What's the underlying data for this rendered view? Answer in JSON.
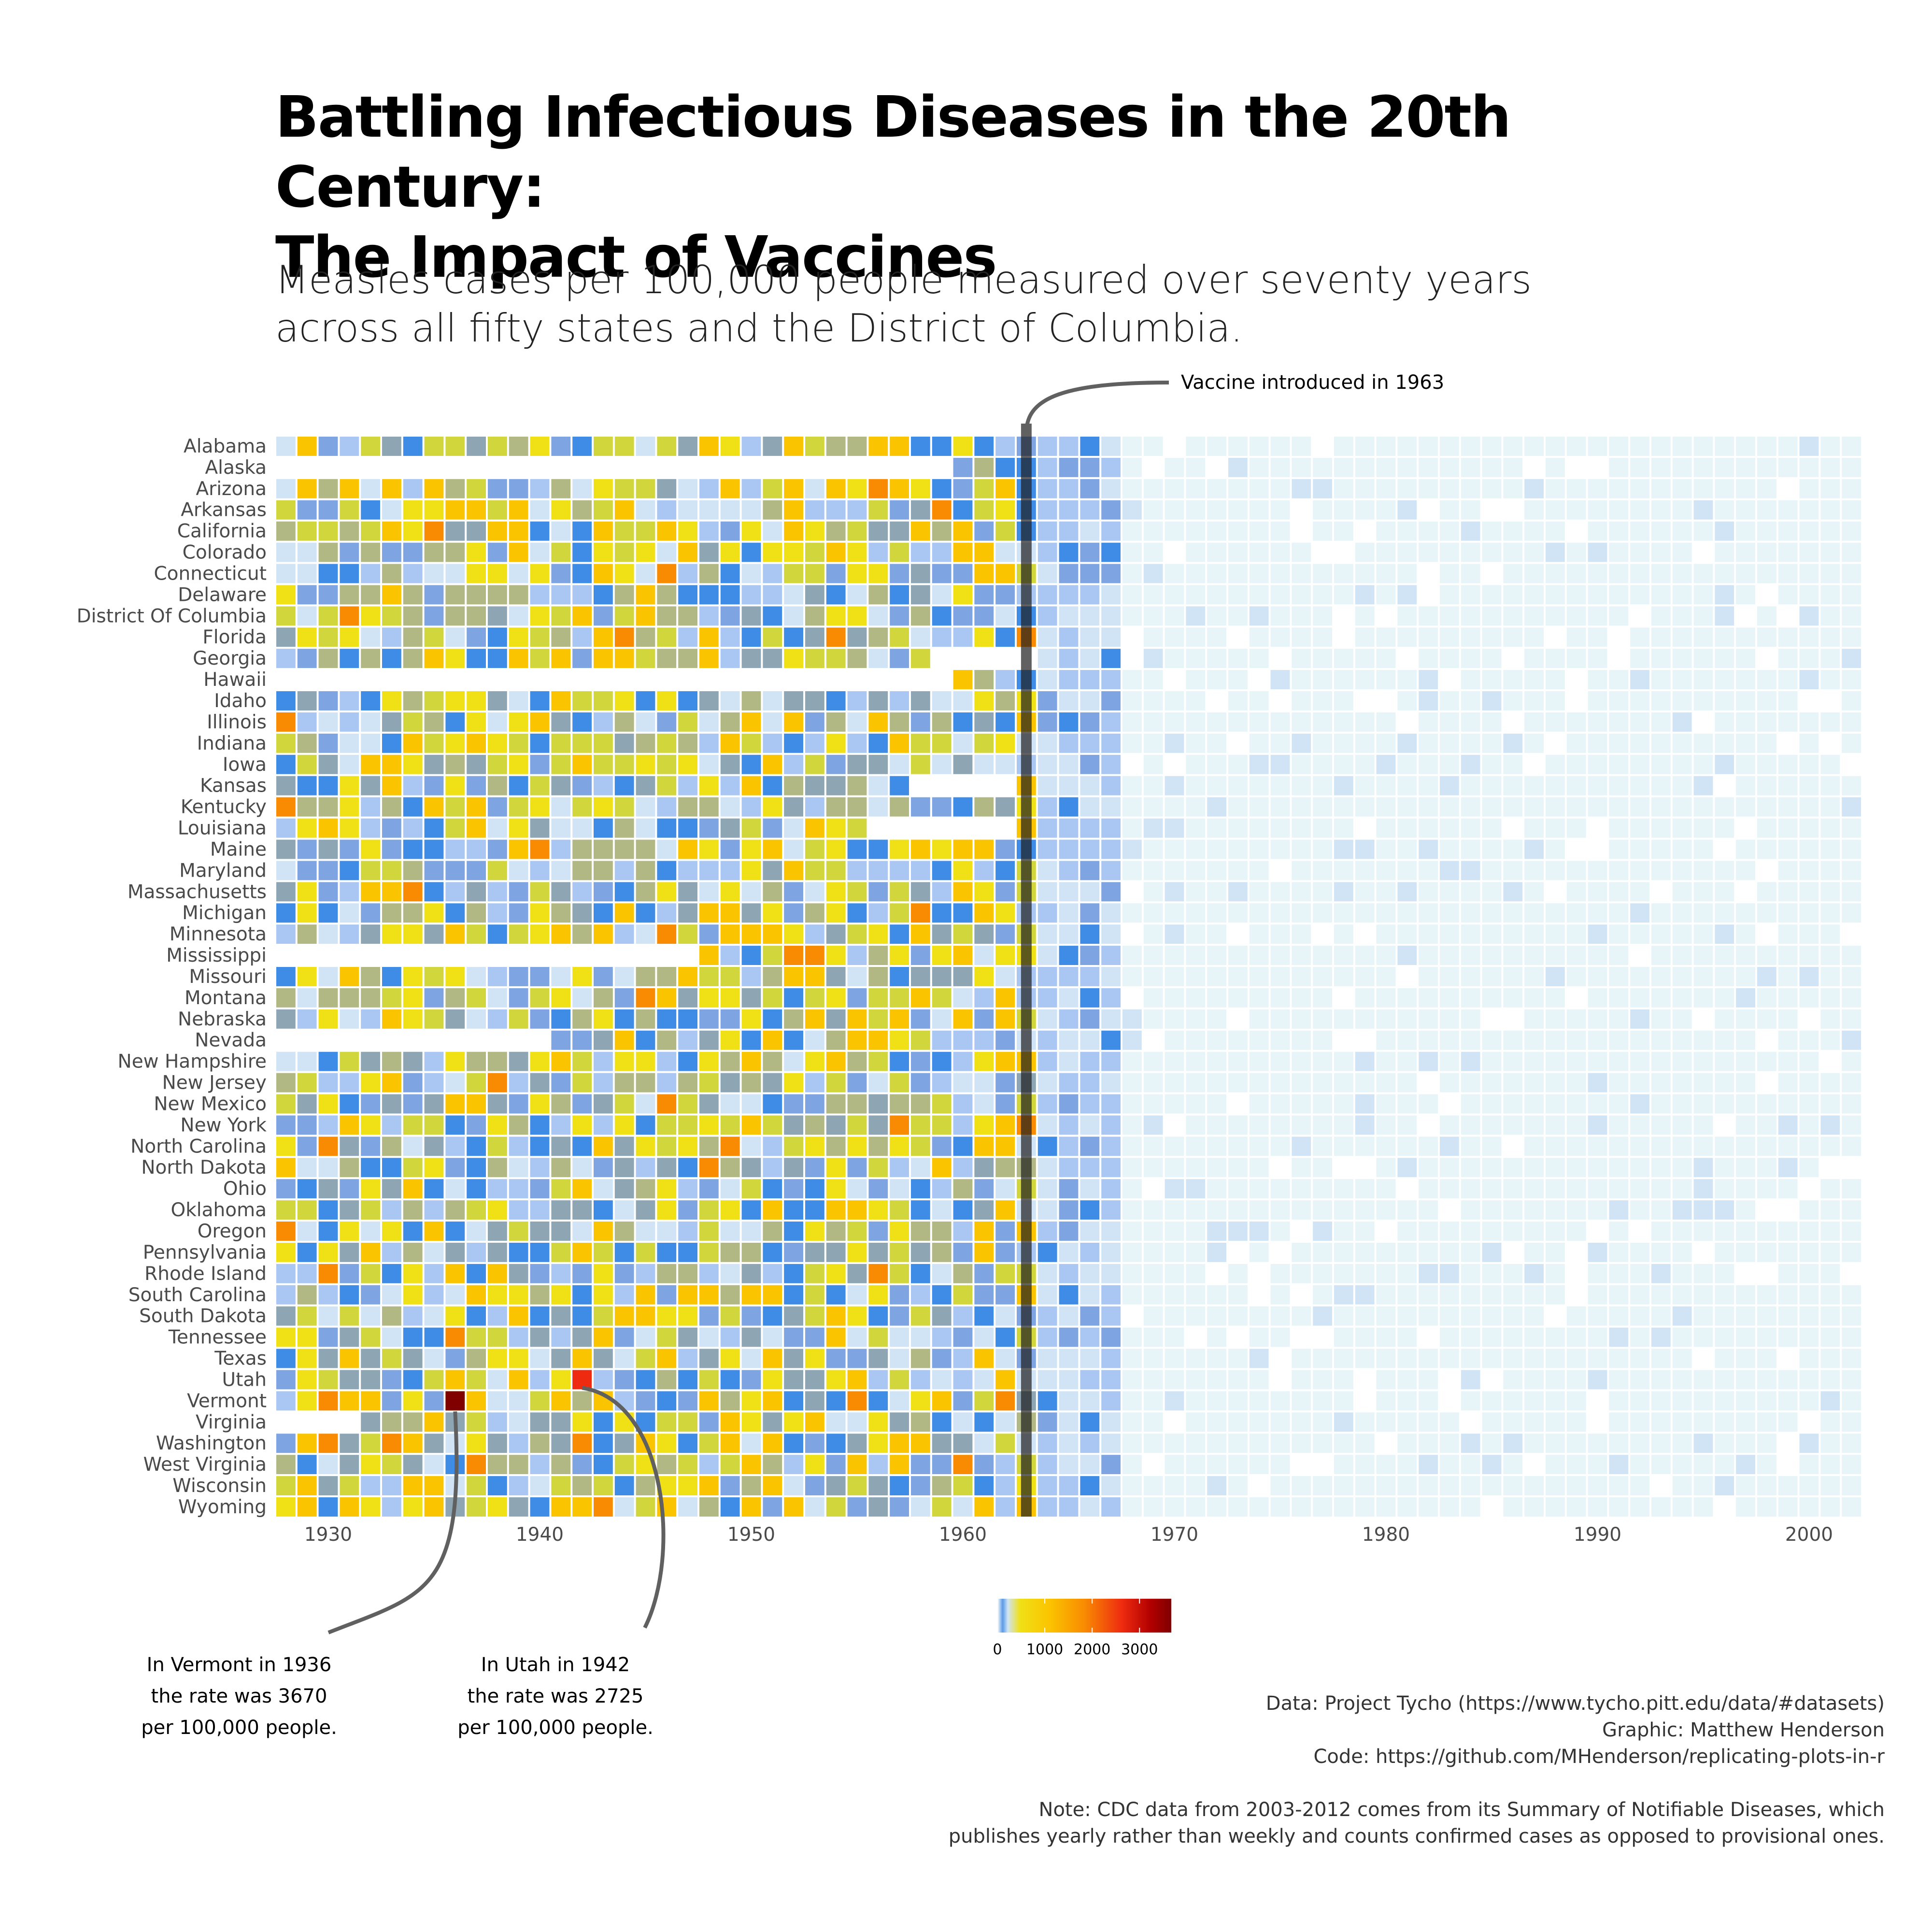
{
  "header": {
    "title_line1": "Battling Infectious Diseases in the 20th Century:",
    "title_line2": "The Impact of Vaccines",
    "subtitle_line1": "Measles cases per 100,000 people measured over seventy years",
    "subtitle_line2": "across all fifty states and the District of Columbia."
  },
  "annotations": {
    "vaccine": "Vaccine introduced in 1963",
    "vermont": [
      "In Vermont in 1936",
      "the rate was  3670",
      "per 100,000 people."
    ],
    "utah": [
      "In Utah in 1942",
      "the rate was  2725",
      "per 100,000 people."
    ]
  },
  "credits": {
    "data": "Data: Project Tycho (https://www.tycho.pitt.edu/data/#datasets)",
    "graphic": "Graphic: Matthew Henderson",
    "code": "Code: https://github.com/MHenderson/replicating-plots-in-r",
    "note_line1": "Note: CDC data from 2003-2012 comes from its Summary of Notifiable Diseases, which",
    "note_line2": "publishes yearly rather than weekly and counts confirmed cases as opposed to provisional ones."
  },
  "colors": {
    "scale": [
      "#e7f4f8",
      "#d0e4f6",
      "#a9c7f2",
      "#7ea4e2",
      "#3f8ce6",
      "#8ea6b4",
      "#b1b883",
      "#d2d63d",
      "#f0e016",
      "#fbc400",
      "#f98b02",
      "#ee2a10",
      "#b20000",
      "#800000"
    ],
    "vaccine_line": "#1e1e1e",
    "annotation_line": "#606060"
  },
  "chart_data": {
    "type": "heatmap",
    "title": "Battling Infectious Diseases in the 20th Century: The Impact of Vaccines",
    "x_label": "",
    "y_label": "",
    "x_ticks": [
      1930,
      1940,
      1950,
      1960,
      1970,
      1980,
      1990,
      2000
    ],
    "year_range": [
      1928,
      2002
    ],
    "vaccine_year": 1963,
    "states": [
      "Alabama",
      "Alaska",
      "Arizona",
      "Arkansas",
      "California",
      "Colorado",
      "Connecticut",
      "Delaware",
      "District Of Columbia",
      "Florida",
      "Georgia",
      "Hawaii",
      "Idaho",
      "Illinois",
      "Indiana",
      "Iowa",
      "Kansas",
      "Kentucky",
      "Louisiana",
      "Maine",
      "Maryland",
      "Massachusetts",
      "Michigan",
      "Minnesota",
      "Mississippi",
      "Missouri",
      "Montana",
      "Nebraska",
      "Nevada",
      "New Hampshire",
      "New Jersey",
      "New Mexico",
      "New York",
      "North Carolina",
      "North Dakota",
      "Ohio",
      "Oklahoma",
      "Oregon",
      "Pennsylvania",
      "Rhode Island",
      "South Carolina",
      "South Dakota",
      "Tennessee",
      "Texas",
      "Utah",
      "Vermont",
      "Virginia",
      "Washington",
      "West Virginia",
      "Wisconsin",
      "Wyoming"
    ],
    "legend": {
      "ticks": [
        0,
        1000,
        2000,
        3000
      ],
      "max": 3670
    },
    "highlights": [
      {
        "state": "Vermont",
        "year": 1936,
        "rate": 3670
      },
      {
        "state": "Utah",
        "year": 1942,
        "rate": 2725
      }
    ]
  }
}
